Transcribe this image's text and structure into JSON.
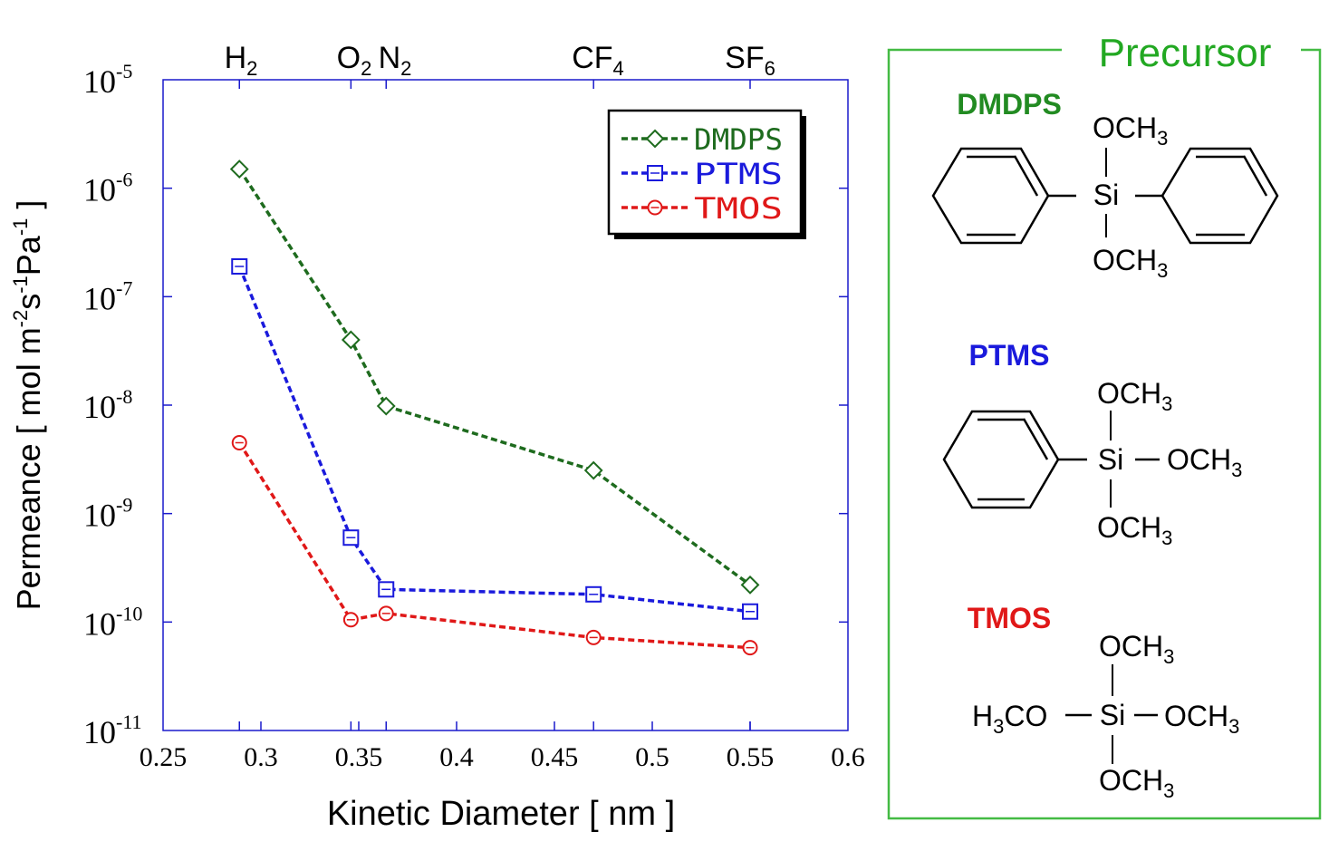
{
  "chart_data": {
    "type": "line",
    "xlabel": "Kinetic Diameter [ nm ]",
    "ylabel": {
      "base": "Permeance [ mol m",
      "exp1": "-2",
      "mid": "s",
      "exp2": "-1",
      "mid2": "Pa",
      "exp3": "-1",
      "end": " ]"
    },
    "xlim": [
      0.25,
      0.6
    ],
    "ylim_log10": [
      -11,
      -5
    ],
    "y_scale": "log",
    "x_ticks": [
      "0.25",
      "0.3",
      "0.35",
      "0.4",
      "0.45",
      "0.5",
      "0.55",
      "0.6"
    ],
    "x_tick_values": [
      0.25,
      0.3,
      0.35,
      0.4,
      0.45,
      0.5,
      0.55,
      0.6
    ],
    "y_ticks": [
      {
        "base": "10",
        "exp": "-5",
        "value": -5
      },
      {
        "base": "10",
        "exp": "-6",
        "value": -6
      },
      {
        "base": "10",
        "exp": "-7",
        "value": -7
      },
      {
        "base": "10",
        "exp": "-8",
        "value": -8
      },
      {
        "base": "10",
        "exp": "-9",
        "value": -9
      },
      {
        "base": "10",
        "exp": "-10",
        "value": -10
      },
      {
        "base": "10",
        "exp": "-11",
        "value": -11
      }
    ],
    "top_labels": [
      {
        "x": 0.289,
        "base": "H",
        "sub": "2",
        "tail": ""
      },
      {
        "x": 0.346,
        "base": "O",
        "sub": "2",
        "tail": ""
      },
      {
        "x": 0.364,
        "base": "N",
        "sub": "2",
        "tail": ""
      },
      {
        "x": 0.47,
        "base": "CF",
        "sub": "4",
        "tail": ""
      },
      {
        "x": 0.55,
        "base": "SF",
        "sub": "6",
        "tail": ""
      }
    ],
    "x": [
      0.289,
      0.346,
      0.364,
      0.47,
      0.55
    ],
    "series": [
      {
        "name": "DMDPS",
        "marker": "diamond",
        "color": "#1e6b1e",
        "values": [
          1.5e-06,
          4e-08,
          9.8e-09,
          2.5e-09,
          2.2e-10
        ]
      },
      {
        "name": "PTMS",
        "marker": "square",
        "color": "#1a1adc",
        "values": [
          1.9e-07,
          6e-10,
          2e-10,
          1.8e-10,
          1.25e-10
        ]
      },
      {
        "name": "TMOS",
        "marker": "circle",
        "color": "#e01818",
        "values": [
          4.5e-09,
          1.05e-10,
          1.2e-10,
          7.2e-11,
          5.8e-11
        ]
      }
    ],
    "legend_placement": "top-right",
    "grid": false
  },
  "precursor_panel": {
    "title": "Precursor",
    "title_color": "#22a822",
    "border_color": "#44bb44",
    "molecules": [
      {
        "name": "DMDPS",
        "color": "#228b22",
        "center": "Si",
        "top": {
          "base": "OCH",
          "sub": "3"
        },
        "bottom": {
          "base": "OCH",
          "sub": "3"
        },
        "left": "phenyl",
        "right": "phenyl"
      },
      {
        "name": "PTMS",
        "color": "#1a1adc",
        "center": "Si",
        "top": {
          "base": "OCH",
          "sub": "3"
        },
        "bottom": {
          "base": "OCH",
          "sub": "3"
        },
        "left": "phenyl",
        "right": {
          "base": "OCH",
          "sub": "3"
        }
      },
      {
        "name": "TMOS",
        "color": "#e01818",
        "center": "Si",
        "top": {
          "base": "OCH",
          "sub": "3"
        },
        "bottom": {
          "base": "OCH",
          "sub": "3"
        },
        "left": {
          "pre": "H",
          "sub": "3",
          "post": "CO"
        },
        "right": {
          "base": "OCH",
          "sub": "3"
        }
      }
    ]
  }
}
